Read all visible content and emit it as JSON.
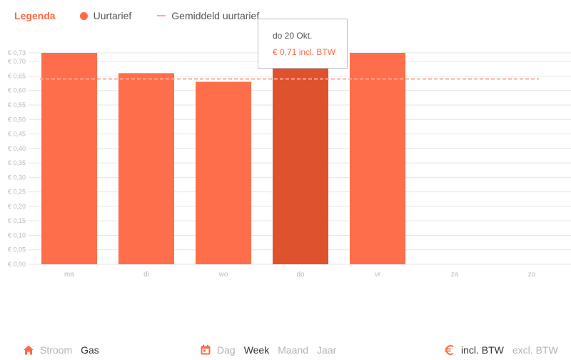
{
  "legend": {
    "title": "Legenda",
    "items": [
      {
        "label": "Uurtarief",
        "marker": "dot"
      },
      {
        "label": "Gemiddeld uurtarief",
        "marker": "dashed-line"
      }
    ]
  },
  "tooltip": {
    "date": "do 20 Okt.",
    "value": "€ 0,71 incl. BTW"
  },
  "chart_data": {
    "type": "bar",
    "categories": [
      "ma",
      "di",
      "wo",
      "do",
      "vr",
      "za",
      "zo"
    ],
    "values": [
      0.73,
      0.66,
      0.63,
      0.71,
      0.73,
      null,
      null
    ],
    "highlighted_index": 3,
    "average": 0.64,
    "ylim": [
      0,
      0.73
    ],
    "yticks": [
      "€ 0,00",
      "€ 0,05",
      "€ 0,10",
      "€ 0,15",
      "€ 0,20",
      "€ 0,25",
      "€ 0,30",
      "€ 0,35",
      "€ 0,40",
      "€ 0,45",
      "€ 0,50",
      "€ 0,55",
      "€ 0,60",
      "€ 0,65",
      "€ 0,70",
      "€ 0,73"
    ],
    "ytick_values": [
      0,
      0.05,
      0.1,
      0.15,
      0.2,
      0.25,
      0.3,
      0.35,
      0.4,
      0.45,
      0.5,
      0.55,
      0.6,
      0.65,
      0.7,
      0.73
    ],
    "grid": true,
    "colors": {
      "bar": "#ff6e4a",
      "bar_highlight": "#de522d",
      "average_line": "#ffa996",
      "grid": "#e6e6e6",
      "tick": "#b8b8b8"
    }
  },
  "controls": {
    "energy": {
      "icon": "home-icon",
      "options": [
        {
          "label": "Stroom",
          "active": false
        },
        {
          "label": "Gas",
          "active": true
        }
      ]
    },
    "period": {
      "icon": "calendar-icon",
      "options": [
        {
          "label": "Dag",
          "active": false
        },
        {
          "label": "Week",
          "active": true
        },
        {
          "label": "Maand",
          "active": false
        },
        {
          "label": "Jaar",
          "active": false
        }
      ]
    },
    "tax": {
      "icon": "euro-icon",
      "options": [
        {
          "label": "incl. BTW",
          "active": true
        },
        {
          "label": "excl. BTW",
          "active": false
        }
      ]
    }
  }
}
